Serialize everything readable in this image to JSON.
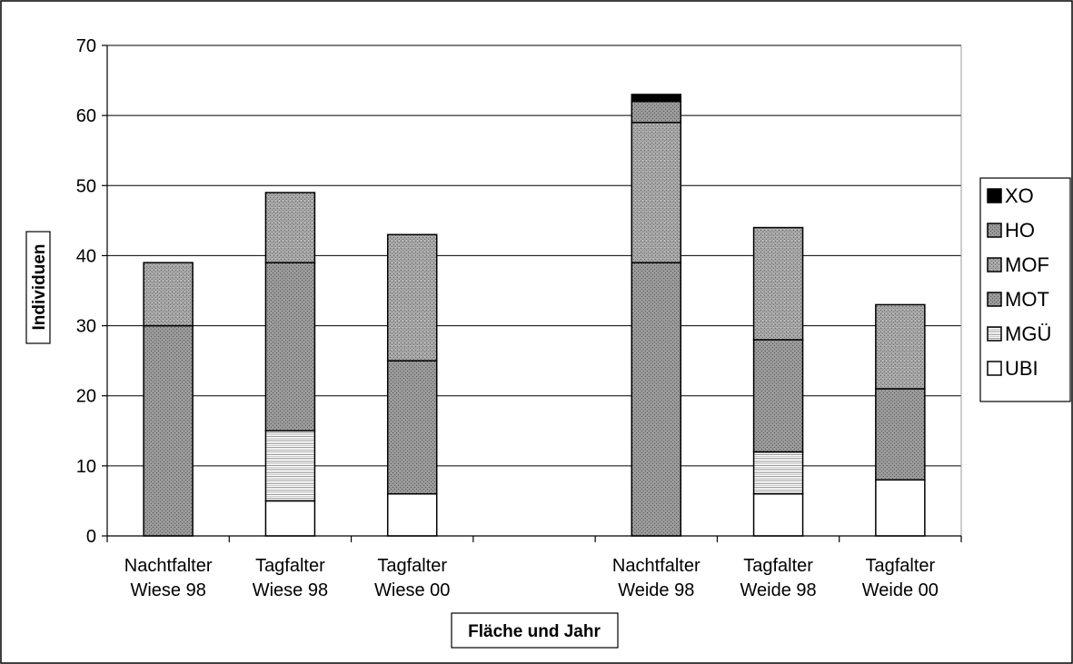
{
  "chart_data": {
    "type": "bar",
    "stacked": true,
    "categories": [
      [
        "Nachtfalter",
        "Wiese 98"
      ],
      [
        "Tagfalter",
        "Wiese 98"
      ],
      [
        "Tagfalter",
        "Wiese 00"
      ],
      [
        "",
        ""
      ],
      [
        "Nachtfalter",
        "Weide 98"
      ],
      [
        "Tagfalter",
        "Weide 98"
      ],
      [
        "Tagfalter",
        "Weide 00"
      ]
    ],
    "series": [
      {
        "name": "UBI",
        "values": [
          0,
          5,
          6,
          0,
          0,
          6,
          8
        ],
        "pattern": "white"
      },
      {
        "name": "MGÜ",
        "values": [
          0,
          10,
          0,
          0,
          0,
          6,
          0
        ],
        "pattern": "hlines"
      },
      {
        "name": "MOT",
        "values": [
          30,
          24,
          19,
          0,
          39,
          16,
          13
        ],
        "pattern": "dots"
      },
      {
        "name": "MOF",
        "values": [
          9,
          10,
          18,
          0,
          20,
          16,
          12
        ],
        "pattern": "dots"
      },
      {
        "name": "HO",
        "values": [
          0,
          0,
          0,
          0,
          3,
          0,
          0
        ],
        "pattern": "dots"
      },
      {
        "name": "XO",
        "values": [
          0,
          0,
          0,
          0,
          1,
          0,
          0
        ],
        "pattern": "black"
      }
    ],
    "legend_order": [
      "XO",
      "HO",
      "MOF",
      "MOT",
      "MGÜ",
      "UBI"
    ],
    "xlabel": "Fläche und Jahr",
    "ylabel": "Individuen",
    "ylim": [
      0,
      70
    ],
    "yticks": [
      0,
      10,
      20,
      30,
      40,
      50,
      60,
      70
    ],
    "grid": true,
    "legend_position": "right",
    "colors": {
      "fill_dark": "#8c8c8c",
      "dots": "#5a5a5a",
      "stroke": "#000000",
      "background": "#ffffff"
    }
  }
}
